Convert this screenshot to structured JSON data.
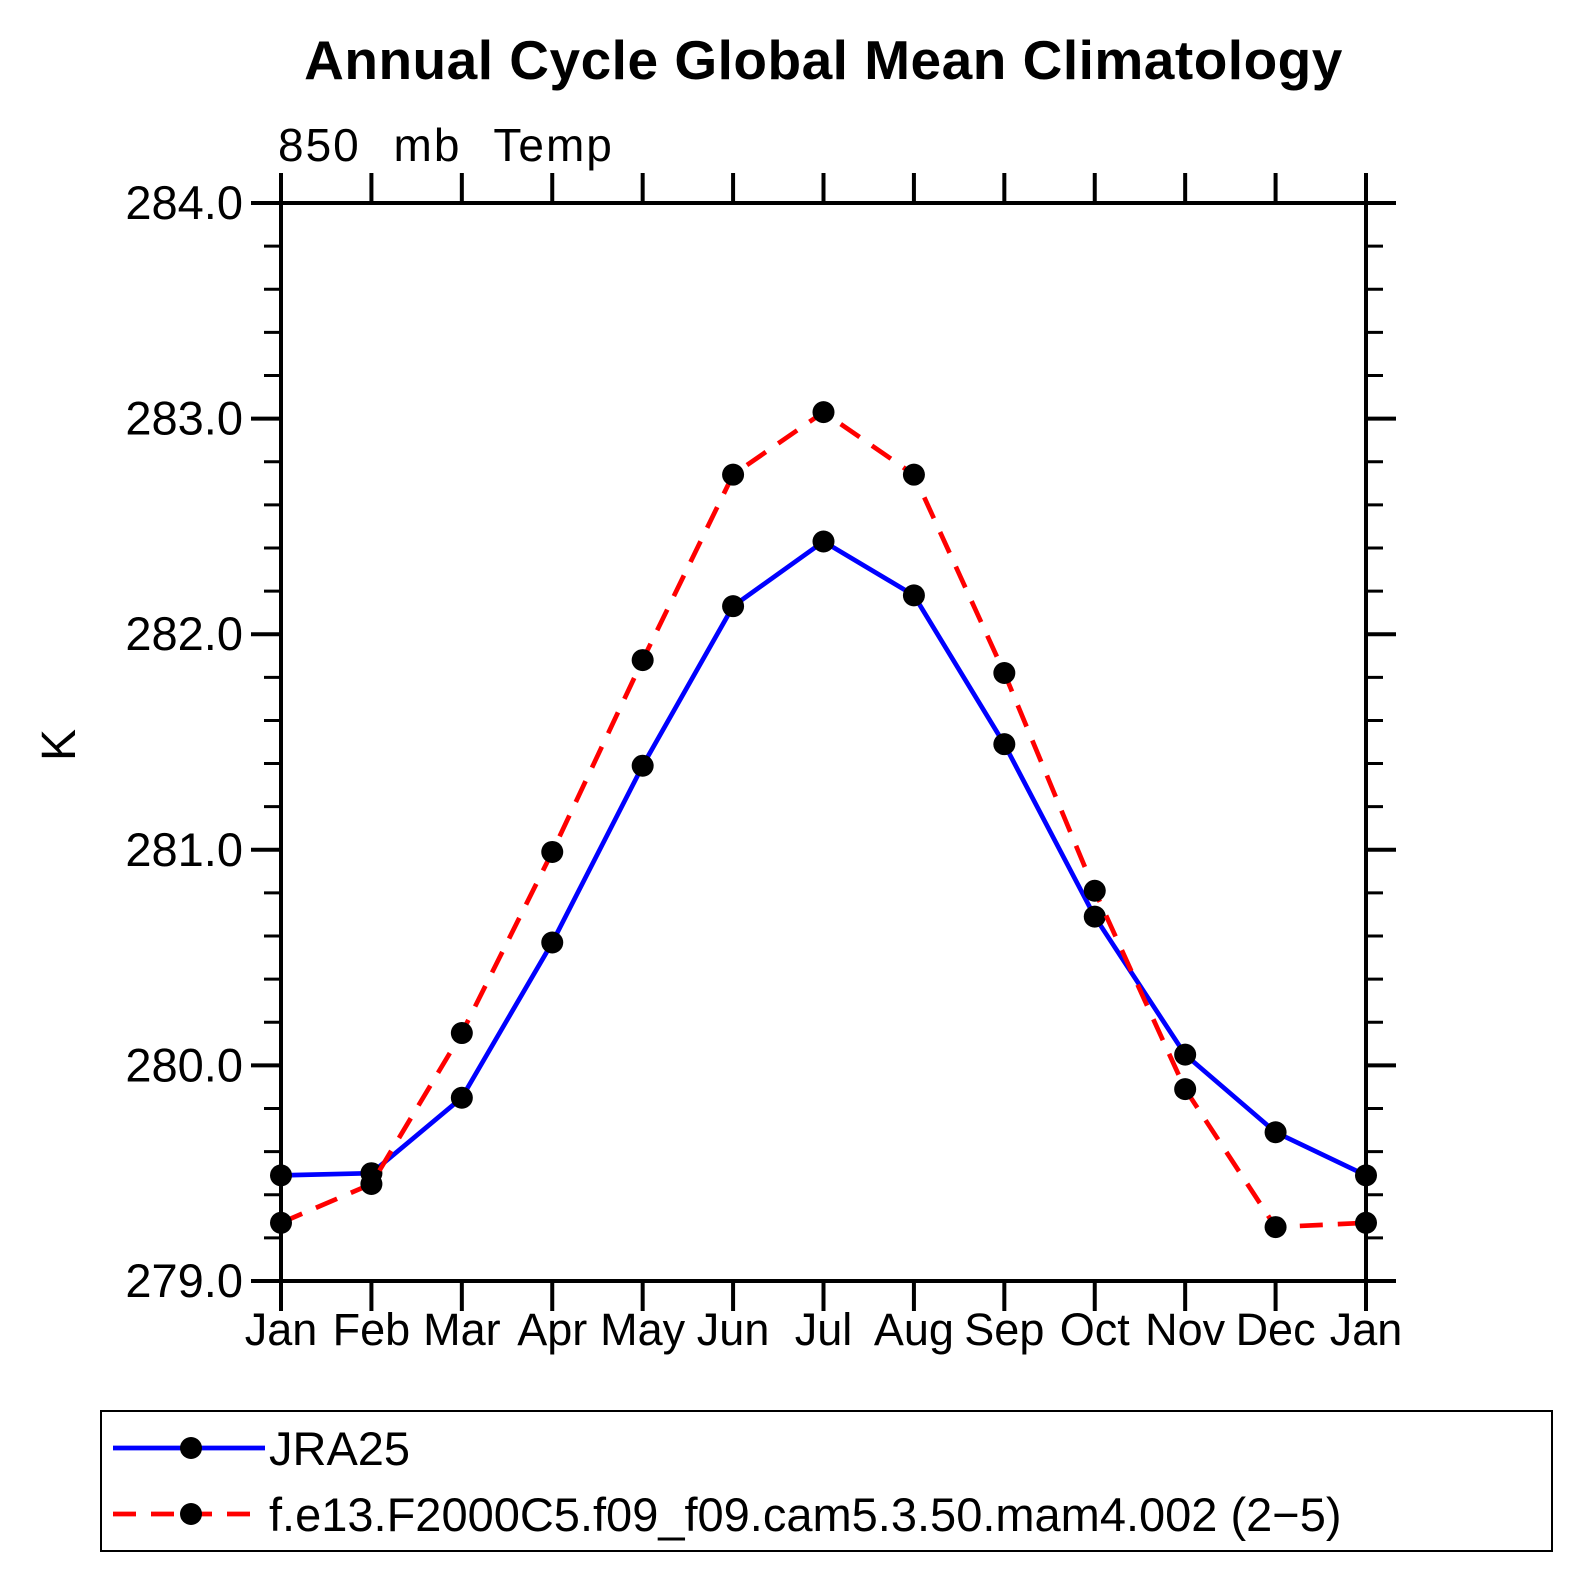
{
  "chart_data": {
    "type": "line",
    "title": "Annual Cycle Global Mean Climatology",
    "subtitle": "850 mb Temp",
    "ylabel": "K",
    "xlabel": "",
    "x_categories": [
      "Jan",
      "Feb",
      "Mar",
      "Apr",
      "May",
      "Jun",
      "Jul",
      "Aug",
      "Sep",
      "Oct",
      "Nov",
      "Dec",
      "Jan"
    ],
    "ylim": [
      279.0,
      284.0
    ],
    "y_major_tick_labels": [
      "284.0",
      "283.0",
      "282.0",
      "281.0",
      "280.0",
      "279.0"
    ],
    "y_major_tick_values": [
      284.0,
      283.0,
      282.0,
      281.0,
      280.0,
      279.0
    ],
    "y_minor_step": 0.2,
    "grid": false,
    "legend_position": "bottom-box",
    "frame": "box-with-outward-ticks",
    "series": [
      {
        "name": "JRA25",
        "color": "#0000ff",
        "line_style": "solid",
        "dash": null,
        "marker": "filled-circle",
        "marker_color": "#000000",
        "values": [
          279.49,
          279.5,
          279.85,
          280.57,
          281.39,
          282.13,
          282.43,
          282.18,
          281.49,
          280.69,
          280.05,
          279.69,
          279.49
        ]
      },
      {
        "name": "f.e13.F2000C5.f09_f09.cam5.3.50.mam4.002 (2−5)",
        "color": "#ff0000",
        "line_style": "dashed",
        "dash": "23 15",
        "marker": "filled-circle",
        "marker_color": "#000000",
        "values": [
          279.27,
          279.45,
          280.15,
          280.99,
          281.88,
          282.74,
          283.03,
          282.74,
          281.82,
          280.81,
          279.89,
          279.25,
          279.27
        ]
      }
    ]
  }
}
